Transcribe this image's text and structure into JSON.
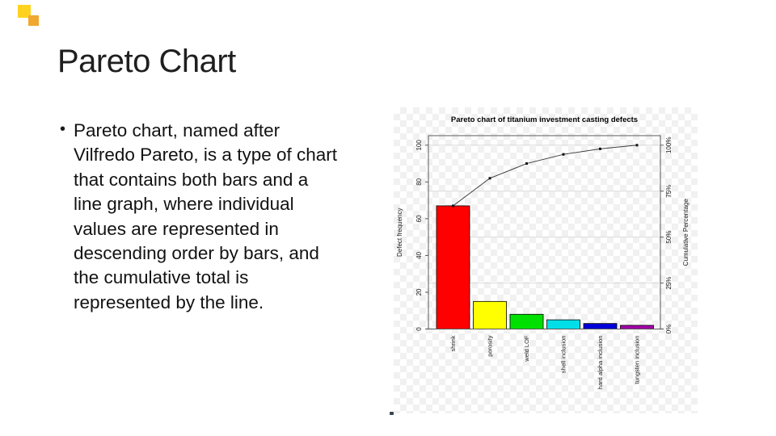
{
  "slide": {
    "title": "Pareto Chart",
    "bullet_char": "•",
    "bullet_lines": [
      "Pareto chart, named after",
      "Vilfredo Pareto, is a type of chart",
      "that contains both bars and a",
      "line graph, where individual",
      "values are represented in",
      "descending order by bars, and",
      "the cumulative total is",
      "represented by the line."
    ],
    "decor": {
      "square1_color": "#FFD21F",
      "square2_color": "#F0A830"
    }
  },
  "chart_data": {
    "type": "bar",
    "subtype": "pareto (bars + cumulative line)",
    "title": "Pareto chart of titanium investment casting defects",
    "categories": [
      "shrink",
      "porosity",
      "weld LOF",
      "shell inclusion",
      "hard alpha inclusion",
      "tungsten inclusion"
    ],
    "values": [
      67,
      15,
      8,
      5,
      3,
      2
    ],
    "series": [
      {
        "name": "Defect frequency",
        "values": [
          67,
          15,
          8,
          5,
          3,
          2
        ]
      },
      {
        "name": "Cumulative Percentage",
        "values": [
          67,
          82,
          90,
          95,
          98,
          100
        ]
      }
    ],
    "bar_colors": [
      "#fe0000",
      "#ffff00",
      "#00e000",
      "#00dfe8",
      "#0000d8",
      "#a400a8"
    ],
    "xlabel": "",
    "ylabel_left": "Defect frequency",
    "ylabel_right": "Cumulative Percentage",
    "yticks_left": [
      0,
      20,
      40,
      60,
      80,
      100
    ],
    "yticks_right_values": [
      0,
      25,
      50,
      75,
      100
    ],
    "yticks_right_labels": [
      "0%",
      "25%",
      "50%",
      "75%",
      "100%"
    ],
    "ylim": [
      0,
      105
    ],
    "grid": "horizontal gridlines at 25/50/75/100%",
    "legend": "none",
    "style_colors": {
      "grid": "#dcdcdc",
      "frame": "#5a5a5a",
      "line": "#3c3c3c",
      "marker": "#111111",
      "text": "#1a1a1a"
    }
  }
}
